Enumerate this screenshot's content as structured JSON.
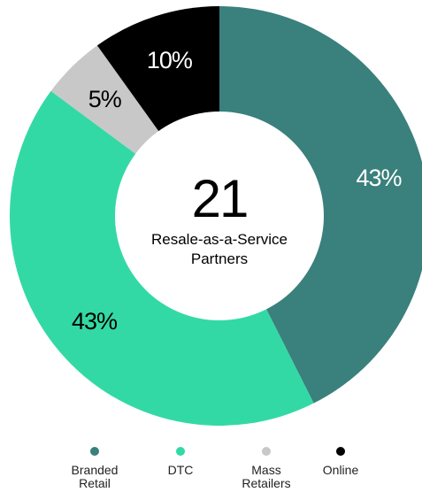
{
  "chart_data": {
    "type": "pie",
    "center_value": "21",
    "center_caption": "Resale-as-a-Service\nPartners",
    "slices": [
      {
        "name": "Branded\nRetail",
        "value": 43,
        "label": "43%",
        "color": "#3a807c",
        "label_color": "#ffffff"
      },
      {
        "name": "DTC",
        "value": 43,
        "label": "43%",
        "color": "#33d9a4",
        "label_color": "#000000"
      },
      {
        "name": "Mass\nRetailers",
        "value": 5,
        "label": "5%",
        "color": "#c8c8c8",
        "label_color": "#000000"
      },
      {
        "name": "Online",
        "value": 10,
        "label": "10%",
        "color": "#000000",
        "label_color": "#ffffff"
      }
    ]
  }
}
